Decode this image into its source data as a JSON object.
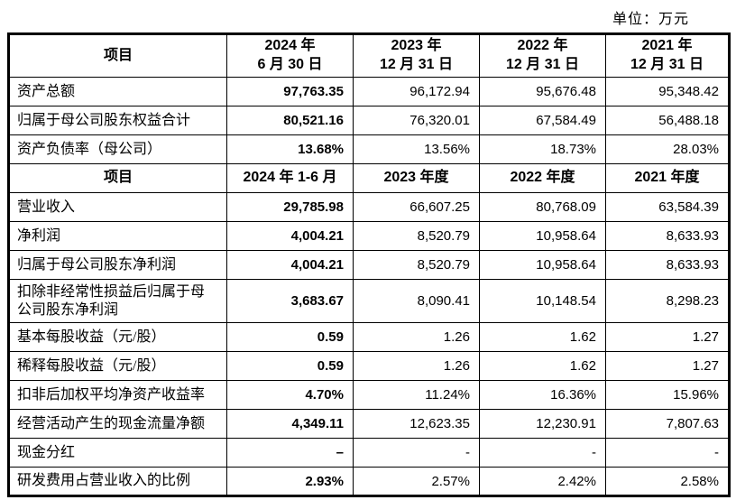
{
  "unit_label": "单位：万元",
  "accent_colors": {
    "text": "#000000",
    "background": "#ffffff",
    "border": "#000000"
  },
  "balance_section": {
    "header": {
      "item": "项目",
      "periods": [
        {
          "l1": "2024 年",
          "l2": "6 月 30 日"
        },
        {
          "l1": "2023 年",
          "l2": "12 月 31 日"
        },
        {
          "l1": "2022 年",
          "l2": "12 月 31 日"
        },
        {
          "l1": "2021 年",
          "l2": "12 月 31 日"
        }
      ]
    },
    "rows": [
      {
        "label": "资产总额",
        "v": [
          "97,763.35",
          "96,172.94",
          "95,676.48",
          "95,348.42"
        ]
      },
      {
        "label": "归属于母公司股东权益合计",
        "v": [
          "80,521.16",
          "76,320.01",
          "67,584.49",
          "56,488.18"
        ]
      },
      {
        "label": "资产负债率（母公司）",
        "v": [
          "13.68%",
          "13.56%",
          "18.73%",
          "28.03%"
        ]
      }
    ]
  },
  "income_section": {
    "header": {
      "item": "项目",
      "periods": [
        "2024 年 1-6 月",
        "2023 年度",
        "2022 年度",
        "2021 年度"
      ]
    },
    "rows": [
      {
        "label": "营业收入",
        "v": [
          "29,785.98",
          "66,607.25",
          "80,768.09",
          "63,584.39"
        ]
      },
      {
        "label": "净利润",
        "v": [
          "4,004.21",
          "8,520.79",
          "10,958.64",
          "8,633.93"
        ]
      },
      {
        "label": "归属于母公司股东净利润",
        "v": [
          "4,004.21",
          "8,520.79",
          "10,958.64",
          "8,633.93"
        ]
      },
      {
        "label": "扣除非经常性损益后归属于母公司股东净利润",
        "v": [
          "3,683.67",
          "8,090.41",
          "10,148.54",
          "8,298.23"
        ]
      },
      {
        "label": "基本每股收益（元/股）",
        "v": [
          "0.59",
          "1.26",
          "1.62",
          "1.27"
        ]
      },
      {
        "label": "稀释每股收益（元/股）",
        "v": [
          "0.59",
          "1.26",
          "1.62",
          "1.27"
        ]
      },
      {
        "label": "扣非后加权平均净资产收益率",
        "v": [
          "4.70%",
          "11.24%",
          "16.36%",
          "15.96%"
        ]
      },
      {
        "label": "经营活动产生的现金流量净额",
        "v": [
          "4,349.11",
          "12,623.35",
          "12,230.91",
          "7,807.63"
        ]
      },
      {
        "label": "现金分红",
        "v": [
          "–",
          "-",
          "-",
          "-"
        ]
      },
      {
        "label": "研发费用占营业收入的比例",
        "v": [
          "2.93%",
          "2.57%",
          "2.42%",
          "2.58%"
        ]
      }
    ]
  }
}
